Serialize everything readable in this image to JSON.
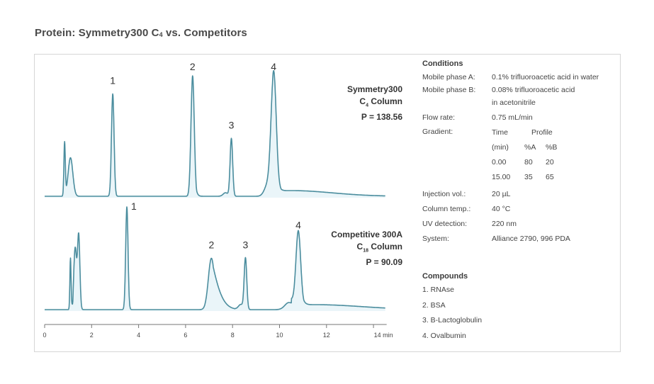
{
  "title": {
    "prefix": "Protein: Symmetry300 C",
    "subscript": "4",
    "suffix": " vs. Competitors"
  },
  "chart_data": {
    "type": "line",
    "title": "Protein: Symmetry300 C4 vs. Competitors",
    "xlabel": "min",
    "ylabel": "",
    "xlim": [
      0,
      14.5
    ],
    "x_ticks": [
      0,
      2,
      4,
      6,
      8,
      10,
      12,
      14
    ],
    "x_tick_labels": [
      "0",
      "2",
      "4",
      "6",
      "8",
      "10",
      "12",
      "14 min"
    ],
    "grid": false,
    "series": [
      {
        "name": "Symmetry300 C4 Column",
        "column_line1": "Symmetry300",
        "column_line2_prefix": "C",
        "column_line2_sub": "4",
        "column_line2_suffix": " Column",
        "p_value_label": "P = 138.56",
        "peaks": [
          {
            "label": "",
            "time": 0.85,
            "rel_height": 0.44
          },
          {
            "label": "",
            "time": 1.1,
            "rel_height": 0.32
          },
          {
            "label": "1",
            "time": 2.9,
            "rel_height": 0.85
          },
          {
            "label": "2",
            "time": 6.3,
            "rel_height": 1.0
          },
          {
            "label": "3",
            "time": 7.95,
            "rel_height": 0.48
          },
          {
            "label": "4",
            "time": 9.75,
            "rel_height": 1.0
          }
        ]
      },
      {
        "name": "Competitive 300A C18 Column",
        "column_line1": "Competitive 300A",
        "column_line2_prefix": "C",
        "column_line2_sub": "18",
        "column_line2_suffix": " Column",
        "p_value_label": "P = 90.09",
        "peaks": [
          {
            "label": "",
            "time": 1.1,
            "rel_height": 0.5
          },
          {
            "label": "",
            "time": 1.3,
            "rel_height": 0.6
          },
          {
            "label": "",
            "time": 1.45,
            "rel_height": 0.72
          },
          {
            "label": "1",
            "time": 3.5,
            "rel_height": 1.0
          },
          {
            "label": "2",
            "time": 7.1,
            "rel_height": 0.5
          },
          {
            "label": "3",
            "time": 8.55,
            "rel_height": 0.5
          },
          {
            "label": "4",
            "time": 10.8,
            "rel_height": 0.72
          }
        ]
      }
    ]
  },
  "conditions": {
    "header": "Conditions",
    "rows": [
      {
        "key": "Mobile phase A:",
        "value": "0.1% trifluoroacetic acid in water"
      },
      {
        "key": "Mobile phase B:",
        "value": "0.08% trifluoroacetic acid",
        "value2": "in acetonitrile"
      },
      {
        "key": "Flow rate:",
        "value": "0.75 mL/min"
      }
    ],
    "gradient": {
      "key": "Gradient:",
      "headers": [
        "Time",
        "Profile",
        ""
      ],
      "subheaders": [
        "(min)",
        "%A",
        "%B"
      ],
      "rows": [
        [
          "0.00",
          "80",
          "20"
        ],
        [
          "15.00",
          "35",
          "65"
        ]
      ]
    },
    "rows2": [
      {
        "key": "Injection vol.:",
        "value": "20 µL"
      },
      {
        "key": "Column temp.:",
        "value": "40 °C"
      },
      {
        "key": "UV detection:",
        "value": "220 nm"
      },
      {
        "key": "System:",
        "value": "Alliance 2790, 996 PDA"
      }
    ]
  },
  "compounds": {
    "header": "Compounds",
    "items": [
      "1. RNAse",
      "2. BSA",
      "3. B-Lactoglobulin",
      "4. Ovalbumin"
    ]
  },
  "colors": {
    "trace": "#4b8d9e",
    "fill": "#e3f1f7",
    "border": "#d6d6d6"
  }
}
